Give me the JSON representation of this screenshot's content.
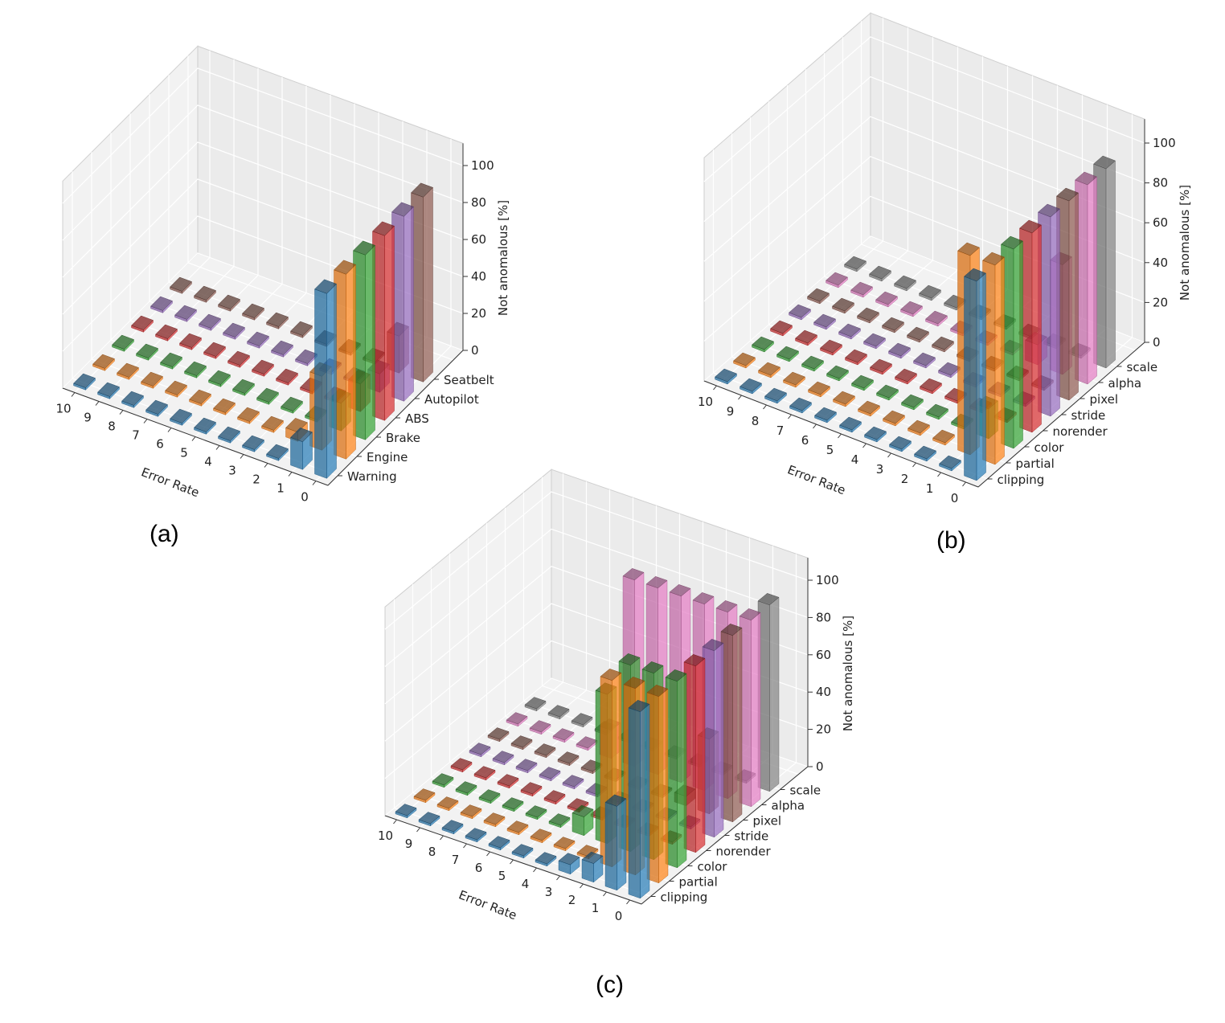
{
  "captions": {
    "a": "(a)",
    "b": "(b)",
    "c": "(c)"
  },
  "chart_data": [
    {
      "id": "a",
      "type": "bar3d",
      "xlabel": "Error Rate",
      "zlabel": "Not anomalous [%]",
      "x": [
        0,
        1,
        2,
        3,
        4,
        5,
        6,
        7,
        8,
        9,
        10
      ],
      "zticks": [
        0,
        20,
        40,
        60,
        80,
        100
      ],
      "zlim": [
        0,
        100
      ],
      "grid": true,
      "series": [
        {
          "name": "Warning",
          "color": "#1f77b4",
          "values": [
            100,
            15,
            0,
            0,
            0,
            0,
            0,
            0,
            0,
            0,
            0
          ]
        },
        {
          "name": "Engine",
          "color": "#ff7f0e",
          "values": [
            100,
            40,
            5,
            0,
            0,
            0,
            0,
            0,
            0,
            0,
            0
          ]
        },
        {
          "name": "Brake",
          "color": "#2ca02c",
          "values": [
            100,
            15,
            0,
            0,
            0,
            0,
            0,
            0,
            0,
            0,
            0
          ]
        },
        {
          "name": "ABS",
          "color": "#d62728",
          "values": [
            100,
            15,
            0,
            0,
            0,
            0,
            0,
            0,
            0,
            0,
            0
          ]
        },
        {
          "name": "Autopilot",
          "color": "#9467bd",
          "values": [
            100,
            10,
            0,
            0,
            0,
            0,
            0,
            0,
            0,
            0,
            0
          ]
        },
        {
          "name": "Seatbelt",
          "color": "#8c564b",
          "values": [
            100,
            20,
            0,
            0,
            0,
            0,
            0,
            0,
            0,
            0,
            0
          ]
        }
      ]
    },
    {
      "id": "b",
      "type": "bar3d",
      "xlabel": "Error Rate",
      "zlabel": "Not anomalous [%]",
      "x": [
        0,
        1,
        2,
        3,
        4,
        5,
        6,
        7,
        8,
        9,
        10
      ],
      "zticks": [
        0,
        20,
        40,
        60,
        80,
        100
      ],
      "zlim": [
        0,
        100
      ],
      "grid": true,
      "series": [
        {
          "name": "clipping",
          "color": "#1f77b4",
          "values": [
            100,
            0,
            0,
            0,
            0,
            0,
            0,
            0,
            0,
            0,
            0
          ]
        },
        {
          "name": "partial",
          "color": "#ff7f0e",
          "values": [
            100,
            100,
            0,
            0,
            0,
            0,
            0,
            0,
            0,
            0,
            0
          ]
        },
        {
          "name": "color",
          "color": "#2ca02c",
          "values": [
            100,
            15,
            0,
            0,
            0,
            0,
            0,
            0,
            0,
            0,
            0
          ]
        },
        {
          "name": "norender",
          "color": "#d62728",
          "values": [
            100,
            0,
            0,
            0,
            0,
            0,
            0,
            0,
            0,
            0,
            0
          ]
        },
        {
          "name": "stride",
          "color": "#9467bd",
          "values": [
            100,
            0,
            0,
            0,
            0,
            0,
            0,
            0,
            0,
            0,
            0
          ]
        },
        {
          "name": "pixel",
          "color": "#8c564b",
          "values": [
            100,
            0,
            0,
            0,
            0,
            0,
            0,
            0,
            0,
            0,
            0
          ]
        },
        {
          "name": "alpha",
          "color": "#e377c2",
          "values": [
            100,
            55,
            10,
            0,
            0,
            0,
            0,
            0,
            0,
            0,
            0
          ]
        },
        {
          "name": "scale",
          "color": "#7f7f7f",
          "values": [
            100,
            0,
            0,
            0,
            0,
            0,
            0,
            0,
            0,
            0,
            0
          ]
        }
      ]
    },
    {
      "id": "c",
      "type": "bar3d",
      "xlabel": "Error Rate",
      "zlabel": "Not anomalous [%]",
      "x": [
        0,
        1,
        2,
        3,
        4,
        5,
        6,
        7,
        8,
        9,
        10
      ],
      "zticks": [
        0,
        20,
        40,
        60,
        80,
        100
      ],
      "zlim": [
        0,
        100
      ],
      "grid": true,
      "series": [
        {
          "name": "clipping",
          "color": "#1f77b4",
          "values": [
            100,
            45,
            10,
            5,
            0,
            0,
            0,
            0,
            0,
            0,
            0
          ]
        },
        {
          "name": "partial",
          "color": "#ff7f0e",
          "values": [
            100,
            100,
            100,
            0,
            0,
            0,
            0,
            0,
            0,
            0,
            0
          ]
        },
        {
          "name": "color",
          "color": "#2ca02c",
          "values": [
            100,
            100,
            100,
            80,
            10,
            0,
            0,
            0,
            0,
            0,
            0
          ]
        },
        {
          "name": "norender",
          "color": "#d62728",
          "values": [
            100,
            0,
            0,
            0,
            0,
            0,
            0,
            0,
            0,
            0,
            0
          ]
        },
        {
          "name": "stride",
          "color": "#9467bd",
          "values": [
            100,
            0,
            0,
            0,
            0,
            0,
            0,
            0,
            0,
            0,
            0
          ]
        },
        {
          "name": "pixel",
          "color": "#8c564b",
          "values": [
            100,
            40,
            5,
            0,
            0,
            0,
            0,
            0,
            0,
            0,
            0
          ]
        },
        {
          "name": "alpha",
          "color": "#e377c2",
          "values": [
            100,
            100,
            100,
            100,
            100,
            100,
            15,
            0,
            0,
            0,
            0
          ]
        },
        {
          "name": "scale",
          "color": "#7f7f7f",
          "values": [
            100,
            0,
            0,
            0,
            0,
            0,
            0,
            0,
            0,
            0,
            0
          ]
        }
      ]
    }
  ]
}
